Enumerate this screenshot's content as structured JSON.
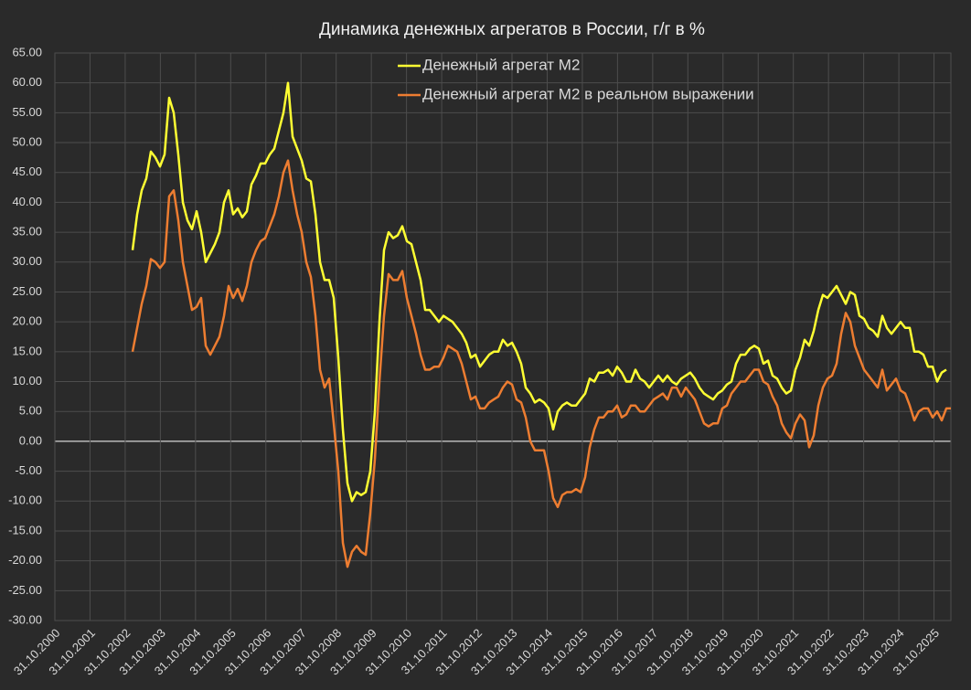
{
  "chart_data": {
    "type": "line",
    "title": "Динамика денежных агрегатов  в России, г/г в %",
    "x": [
      2003.04,
      2003.17,
      2003.3,
      2003.43,
      2003.56,
      2003.69,
      2003.82,
      2003.95,
      2004.08,
      2004.21,
      2004.34,
      2004.47,
      2004.6,
      2004.73,
      2004.86,
      2004.99,
      2005.12,
      2005.25,
      2005.38,
      2005.51,
      2005.64,
      2005.77,
      2005.9,
      2006.03,
      2006.16,
      2006.29,
      2006.42,
      2006.55,
      2006.68,
      2006.81,
      2006.94,
      2007.07,
      2007.2,
      2007.33,
      2007.46,
      2007.59,
      2007.72,
      2007.85,
      2007.98,
      2008.11,
      2008.24,
      2008.37,
      2008.5,
      2008.63,
      2008.76,
      2008.89,
      2009.02,
      2009.15,
      2009.28,
      2009.41,
      2009.54,
      2009.67,
      2009.8,
      2009.93,
      2010.06,
      2010.19,
      2010.32,
      2010.45,
      2010.58,
      2010.71,
      2010.84,
      2010.97,
      2011.1,
      2011.23,
      2011.36,
      2011.49,
      2011.62,
      2011.75,
      2011.88,
      2012.01,
      2012.14,
      2012.27,
      2012.4,
      2012.53,
      2012.66,
      2012.79,
      2012.92,
      2013.05,
      2013.18,
      2013.31,
      2013.44,
      2013.57,
      2013.7,
      2013.83,
      2013.96,
      2014.09,
      2014.22,
      2014.35,
      2014.48,
      2014.61,
      2014.74,
      2014.87,
      2015.0,
      2015.13,
      2015.26,
      2015.39,
      2015.52,
      2015.65,
      2015.78,
      2015.91,
      2016.04,
      2016.17,
      2016.3,
      2016.43,
      2016.56,
      2016.69,
      2016.82,
      2016.95,
      2017.08,
      2017.21,
      2017.34,
      2017.47,
      2017.6,
      2017.73,
      2017.86,
      2017.99,
      2018.12,
      2018.25,
      2018.38,
      2018.51,
      2018.64,
      2018.77,
      2018.9,
      2019.03,
      2019.16,
      2019.29,
      2019.42,
      2019.55,
      2019.68,
      2019.81,
      2019.94,
      2020.07,
      2020.2,
      2020.33,
      2020.46,
      2020.59,
      2020.72,
      2020.85,
      2020.98,
      2021.11,
      2021.24,
      2021.37,
      2021.5,
      2021.63,
      2021.76,
      2021.89,
      2022.02,
      2022.15,
      2022.28,
      2022.41,
      2022.54,
      2022.67,
      2022.8,
      2022.93,
      2023.06,
      2023.19,
      2023.32,
      2023.45,
      2023.58,
      2023.71,
      2023.84,
      2023.97,
      2024.1,
      2024.23,
      2024.36,
      2024.49,
      2024.62,
      2024.75,
      2024.88,
      2025.01,
      2025.14,
      2025.27,
      2025.4,
      2025.53,
      2025.66,
      2025.79,
      2025.92,
      2026.05,
      2026.18,
      2026.31
    ],
    "series": [
      {
        "name": "Денежный агрегат М2",
        "color": "#ffff33",
        "values": [
          32,
          38,
          42,
          44,
          48.5,
          47.5,
          46,
          48,
          57.5,
          55,
          48,
          40,
          37,
          35.5,
          38.5,
          35,
          30,
          31.5,
          33,
          35,
          40,
          42,
          38,
          39,
          37.5,
          38.5,
          43,
          44.5,
          46.5,
          46.5,
          48,
          49,
          52,
          55,
          60,
          51,
          49,
          47,
          44,
          43.5,
          38,
          30,
          27,
          27,
          24,
          14,
          2,
          -7,
          -10,
          -8.5,
          -9,
          -8.5,
          -5,
          5,
          20,
          32,
          35,
          34,
          34.5,
          36,
          33.5,
          33,
          30,
          27,
          22,
          22,
          21,
          20,
          21,
          20.5,
          20,
          19,
          18,
          16.5,
          14,
          14.5,
          12.5,
          13.5,
          14.5,
          15,
          15,
          17,
          16,
          16.5,
          15,
          13,
          9,
          8,
          6.5,
          7,
          6.5,
          5.5,
          2,
          5,
          6,
          6.5,
          6,
          6,
          7,
          8,
          10.5,
          10,
          11.5,
          11.5,
          12,
          11,
          12.5,
          11.5,
          10,
          10,
          12,
          10.5,
          10,
          9,
          10,
          11,
          10,
          11,
          10,
          9.5,
          10.5,
          11,
          11.5,
          10.5,
          9,
          8,
          7.5,
          7,
          8,
          8.5,
          9.5,
          10,
          13,
          14.5,
          14.5,
          15.5,
          16,
          15.5,
          13,
          13.5,
          11,
          10.5,
          9,
          8,
          8.5,
          12,
          14,
          17,
          16,
          18.5,
          22,
          24.5,
          24,
          25,
          26,
          24.5,
          23,
          25,
          24.5,
          21,
          20.5,
          19,
          18.5,
          17.5,
          21,
          19,
          18,
          19,
          20,
          19,
          19,
          15,
          15,
          14.5,
          12.5,
          12.5,
          10,
          11.5,
          12,
          null
        ]
      },
      {
        "name": "Денежный агрегат М2 в реальном выражении",
        "color": "#ed7d31",
        "values": [
          15,
          19,
          23,
          26,
          30.5,
          30,
          29,
          30,
          41,
          42,
          37,
          30,
          26,
          22,
          22.5,
          24,
          16,
          14.5,
          16,
          17.5,
          21,
          26,
          24,
          25.5,
          23.5,
          26,
          30,
          32,
          33.5,
          34,
          36,
          38,
          41,
          45,
          47,
          42,
          38,
          35,
          30,
          27.5,
          21,
          12,
          9,
          10.5,
          3,
          -5,
          -17,
          -21,
          -18.5,
          -17.5,
          -18.5,
          -19,
          -12,
          -3,
          10,
          21,
          28,
          27,
          27,
          28.5,
          24,
          21,
          18,
          14.5,
          12,
          12,
          12.5,
          12.5,
          14,
          16,
          15.5,
          15,
          13,
          10,
          7,
          7.5,
          5.5,
          5.5,
          6.5,
          7,
          7.5,
          9,
          10,
          9.5,
          7,
          6.5,
          4,
          0,
          -1.5,
          -1.5,
          -1.5,
          -5,
          -9.5,
          -11,
          -9,
          -8.5,
          -8.5,
          -8,
          -8.5,
          -6,
          -1,
          2,
          4,
          4,
          5,
          5,
          6,
          4,
          4.5,
          6,
          6,
          5,
          5,
          6,
          7,
          7.5,
          8,
          7,
          9,
          9,
          7.5,
          9,
          8,
          7,
          5,
          3,
          2.5,
          3,
          3,
          5.5,
          6,
          8,
          9,
          10,
          10,
          11,
          12,
          12,
          10,
          9.5,
          7.5,
          6,
          3,
          1.5,
          0.5,
          3,
          4.5,
          3.5,
          -1,
          1,
          6,
          9,
          10.5,
          11,
          13,
          18,
          21.5,
          20,
          16,
          14,
          12,
          11,
          10,
          9,
          12,
          8.5,
          9.5,
          10.5,
          8.5,
          8,
          6,
          3.5,
          5,
          5.5,
          5.5,
          4,
          5,
          3.5,
          5.5,
          5.5
        ]
      }
    ],
    "xlim": [
      2000.83,
      2026.31
    ],
    "xticks": [
      {
        "value": 2000.83,
        "label": "31.10.2000"
      },
      {
        "value": 2001.83,
        "label": "31.10.2001"
      },
      {
        "value": 2002.83,
        "label": "31.10.2002"
      },
      {
        "value": 2003.83,
        "label": "31.10.2003"
      },
      {
        "value": 2004.83,
        "label": "31.10.2004"
      },
      {
        "value": 2005.83,
        "label": "31.10.2005"
      },
      {
        "value": 2006.83,
        "label": "31.10.2006"
      },
      {
        "value": 2007.83,
        "label": "31.10.2007"
      },
      {
        "value": 2008.83,
        "label": "31.10.2008"
      },
      {
        "value": 2009.83,
        "label": "31.10.2009"
      },
      {
        "value": 2010.83,
        "label": "31.10.2010"
      },
      {
        "value": 2011.83,
        "label": "31.10.2011"
      },
      {
        "value": 2012.83,
        "label": "31.10.2012"
      },
      {
        "value": 2013.83,
        "label": "31.10.2013"
      },
      {
        "value": 2014.83,
        "label": "31.10.2014"
      },
      {
        "value": 2015.83,
        "label": "31.10.2015"
      },
      {
        "value": 2016.83,
        "label": "31.10.2016"
      },
      {
        "value": 2017.83,
        "label": "31.10.2017"
      },
      {
        "value": 2018.83,
        "label": "31.10.2018"
      },
      {
        "value": 2019.83,
        "label": "31.10.2019"
      },
      {
        "value": 2020.83,
        "label": "31.10.2020"
      },
      {
        "value": 2021.83,
        "label": "31.10.2021"
      },
      {
        "value": 2022.83,
        "label": "31.10.2022"
      },
      {
        "value": 2023.83,
        "label": "31.10.2023"
      },
      {
        "value": 2024.83,
        "label": "31.10.2024"
      },
      {
        "value": 2025.83,
        "label": "31.10.2025"
      }
    ],
    "ylim": [
      -30,
      65
    ],
    "yticks": [
      {
        "value": -30,
        "label": "-30.00"
      },
      {
        "value": -25,
        "label": "-25.00"
      },
      {
        "value": -20,
        "label": "-20.00"
      },
      {
        "value": -15,
        "label": "-15.00"
      },
      {
        "value": -10,
        "label": "-10.00"
      },
      {
        "value": -5,
        "label": "-5.00"
      },
      {
        "value": 0,
        "label": "0.00"
      },
      {
        "value": 5,
        "label": "5.00"
      },
      {
        "value": 10,
        "label": "10.00"
      },
      {
        "value": 15,
        "label": "15.00"
      },
      {
        "value": 20,
        "label": "20.00"
      },
      {
        "value": 25,
        "label": "25.00"
      },
      {
        "value": 30,
        "label": "30.00"
      },
      {
        "value": 35,
        "label": "35.00"
      },
      {
        "value": 40,
        "label": "40.00"
      },
      {
        "value": 45,
        "label": "45.00"
      },
      {
        "value": 50,
        "label": "50.00"
      },
      {
        "value": 55,
        "label": "55.00"
      },
      {
        "value": 60,
        "label": "60.00"
      },
      {
        "value": 65,
        "label": "65.00"
      }
    ],
    "grid": true,
    "legend": "top"
  }
}
